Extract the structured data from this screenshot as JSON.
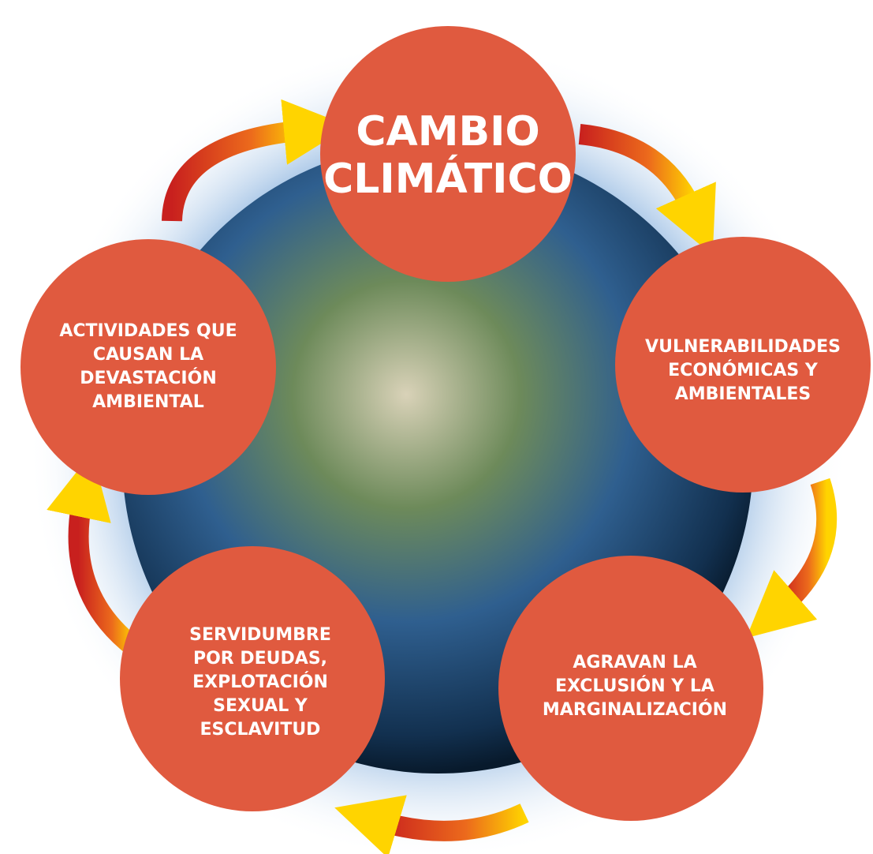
{
  "nodes": [
    {
      "lines": [
        "CAMBIO",
        "CLIMÁTICO"
      ]
    },
    {
      "lines": [
        "VULNERABILIDADES",
        "ECONÓMICAS Y",
        "AMBIENTALES"
      ]
    },
    {
      "lines": [
        "AGRAVAN LA",
        "EXCLUSIÓN Y LA",
        "MARGINALIZACIÓN"
      ]
    },
    {
      "lines": [
        "SERVIDUMBRE",
        "POR DEUDAS,",
        "EXPLOTACIÓN",
        "SEXUAL Y",
        "ESCLAVITUD"
      ]
    },
    {
      "lines": [
        "ACTIVIDADES QUE",
        "CAUSAN LA",
        "DEVASTACIÓN",
        "AMBIENTAL"
      ]
    }
  ]
}
